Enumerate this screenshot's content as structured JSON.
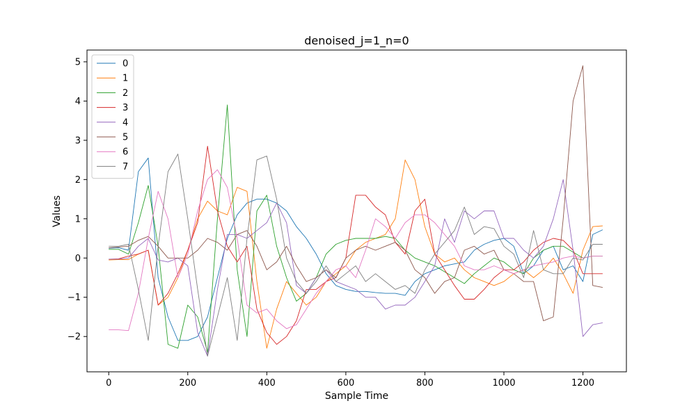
{
  "chart_data": {
    "type": "line",
    "title": "denoised_j=1_n=0",
    "xlabel": "Sample Time",
    "ylabel": "Values",
    "xlim": [
      -55,
      1310
    ],
    "ylim": [
      -2.9,
      5.3
    ],
    "xticks": [
      0,
      200,
      400,
      600,
      800,
      1000,
      1200
    ],
    "yticks": [
      -2,
      -1,
      0,
      1,
      2,
      3,
      4,
      5
    ],
    "grid": false,
    "legend_position": "top-left",
    "colors": [
      "#1f77b4",
      "#ff7f0e",
      "#2ca02c",
      "#d62728",
      "#9467bd",
      "#8c564b",
      "#e377c2",
      "#7f7f7f"
    ],
    "x": [
      0,
      25,
      50,
      75,
      100,
      125,
      150,
      175,
      200,
      225,
      250,
      275,
      300,
      325,
      350,
      375,
      400,
      425,
      450,
      475,
      500,
      525,
      550,
      575,
      600,
      625,
      650,
      675,
      700,
      725,
      750,
      775,
      800,
      825,
      850,
      875,
      900,
      925,
      950,
      975,
      1000,
      1025,
      1050,
      1075,
      1100,
      1125,
      1150,
      1175,
      1200,
      1225,
      1250
    ],
    "series": [
      {
        "name": "0",
        "values": [
          0.25,
          0.26,
          0.2,
          2.2,
          2.55,
          -0.5,
          -1.5,
          -2.1,
          -2.1,
          -2.0,
          -1.5,
          -0.5,
          0.5,
          1.1,
          1.4,
          1.5,
          1.5,
          1.4,
          1.2,
          0.8,
          0.5,
          0.1,
          -0.4,
          -0.7,
          -0.8,
          -0.85,
          -0.85,
          -0.88,
          -0.9,
          -0.9,
          -0.95,
          -0.6,
          -0.4,
          -0.3,
          -0.2,
          -0.15,
          -0.1,
          0.2,
          0.35,
          0.45,
          0.5,
          0.3,
          -0.4,
          -0.2,
          0.2,
          0.3,
          -0.3,
          -0.2,
          -0.6,
          0.6,
          0.72
        ]
      },
      {
        "name": "1",
        "values": [
          -0.05,
          -0.04,
          -0.04,
          0.1,
          0.2,
          -1.2,
          -1.0,
          -0.5,
          0.2,
          1.0,
          1.45,
          1.2,
          1.1,
          1.8,
          1.7,
          -0.6,
          -2.3,
          -1.3,
          -0.6,
          -0.9,
          -1.2,
          -1.0,
          -0.6,
          -0.4,
          -0.2,
          0.2,
          0.4,
          0.5,
          0.6,
          1.0,
          2.5,
          2.0,
          0.8,
          0.1,
          -0.1,
          0.0,
          -0.3,
          -0.5,
          -0.6,
          -0.7,
          -0.6,
          -0.4,
          -0.3,
          -0.5,
          -0.3,
          0.0,
          -0.4,
          -0.9,
          0.2,
          0.8,
          0.82
        ]
      },
      {
        "name": "2",
        "values": [
          0.22,
          0.22,
          0.1,
          0.9,
          1.85,
          0.3,
          -2.2,
          -2.3,
          -1.2,
          -1.5,
          -2.4,
          1.0,
          3.9,
          -0.3,
          -2.0,
          1.2,
          1.6,
          0.3,
          -0.5,
          -1.1,
          -0.9,
          -0.5,
          0.1,
          0.35,
          0.45,
          0.5,
          0.5,
          0.5,
          0.55,
          0.5,
          0.2,
          0.0,
          -0.1,
          -0.2,
          -0.35,
          -0.5,
          -0.65,
          -0.4,
          -0.2,
          0.0,
          -0.1,
          -0.3,
          -0.4,
          0.0,
          0.2,
          0.3,
          0.3,
          0.15,
          0.0,
          0.05,
          0.05
        ]
      },
      {
        "name": "3",
        "values": [
          -0.03,
          -0.02,
          0.05,
          0.1,
          0.2,
          -1.2,
          -0.9,
          -0.4,
          0.2,
          0.9,
          2.85,
          1.2,
          0.3,
          -0.1,
          0.3,
          -1.3,
          -1.9,
          -2.2,
          -2.0,
          -1.6,
          -0.8,
          -0.8,
          -0.6,
          -0.5,
          0.0,
          1.6,
          1.6,
          1.3,
          1.1,
          0.4,
          0.1,
          1.2,
          1.5,
          0.1,
          -0.3,
          -0.7,
          -1.05,
          -1.05,
          -0.8,
          -0.5,
          -0.3,
          -0.3,
          -0.1,
          0.2,
          0.4,
          0.5,
          0.45,
          0.2,
          -0.4,
          -0.4,
          -0.4
        ]
      },
      {
        "name": "4",
        "values": [
          -0.03,
          -0.03,
          0.0,
          0.3,
          0.5,
          -0.05,
          -0.1,
          0.0,
          -0.2,
          -1.9,
          -2.5,
          -0.8,
          0.6,
          0.6,
          0.5,
          0.7,
          0.9,
          1.4,
          0.9,
          -0.7,
          -0.9,
          -0.5,
          -0.3,
          -0.6,
          -0.7,
          -0.8,
          -1.0,
          -1.0,
          -1.3,
          -1.2,
          -1.2,
          -1.0,
          -0.6,
          -0.2,
          1.0,
          0.4,
          1.2,
          1.0,
          1.2,
          1.2,
          0.5,
          0.5,
          0.2,
          0.0,
          0.3,
          1.0,
          2.0,
          0.2,
          -2.0,
          -1.7,
          -1.65
        ]
      },
      {
        "name": "5",
        "values": [
          0.26,
          0.28,
          0.3,
          0.45,
          0.55,
          0.3,
          0.0,
          0.0,
          0.0,
          0.2,
          0.5,
          0.4,
          0.2,
          0.6,
          0.7,
          0.3,
          -0.3,
          -0.1,
          0.3,
          -0.2,
          -0.6,
          -0.5,
          -0.3,
          -0.5,
          0.0,
          0.2,
          0.3,
          0.2,
          0.3,
          0.4,
          0.2,
          -0.3,
          -0.5,
          -0.9,
          -0.6,
          -0.5,
          0.2,
          0.3,
          0.1,
          0.2,
          -0.3,
          -0.4,
          -0.6,
          -0.6,
          -1.6,
          -1.5,
          1.0,
          4.0,
          4.9,
          -0.7,
          -0.75
        ]
      },
      {
        "name": "6",
        "values": [
          -1.83,
          -1.83,
          -1.85,
          -0.9,
          0.5,
          1.7,
          1.0,
          -0.5,
          0.1,
          1.2,
          2.0,
          2.25,
          1.8,
          0.5,
          -1.2,
          -1.4,
          -1.3,
          -1.6,
          -1.8,
          -1.7,
          -1.3,
          -0.9,
          -0.6,
          -0.3,
          -0.2,
          -0.5,
          0.2,
          1.0,
          0.8,
          0.5,
          0.9,
          1.1,
          1.1,
          0.9,
          0.6,
          0.3,
          -0.2,
          -0.3,
          -0.3,
          -0.2,
          -0.3,
          -0.4,
          -0.3,
          -0.2,
          -0.15,
          -0.1,
          0.0,
          0.05,
          0.0,
          0.05,
          0.05
        ]
      },
      {
        "name": "7",
        "values": [
          0.3,
          0.3,
          0.35,
          -0.8,
          -2.1,
          0.3,
          2.2,
          2.65,
          1.0,
          -0.8,
          -2.5,
          -1.5,
          -0.5,
          -2.1,
          0.5,
          2.5,
          2.6,
          1.5,
          0.0,
          -0.6,
          -0.9,
          -0.6,
          -0.2,
          -0.6,
          -0.4,
          -0.2,
          -0.6,
          -0.4,
          -0.6,
          -0.8,
          -0.7,
          -0.9,
          -0.3,
          0.1,
          0.4,
          0.7,
          1.3,
          0.6,
          0.8,
          0.75,
          0.3,
          0.1,
          -0.5,
          0.7,
          -0.3,
          -0.4,
          -0.4,
          0.0,
          -0.05,
          0.35,
          0.35
        ]
      }
    ]
  }
}
